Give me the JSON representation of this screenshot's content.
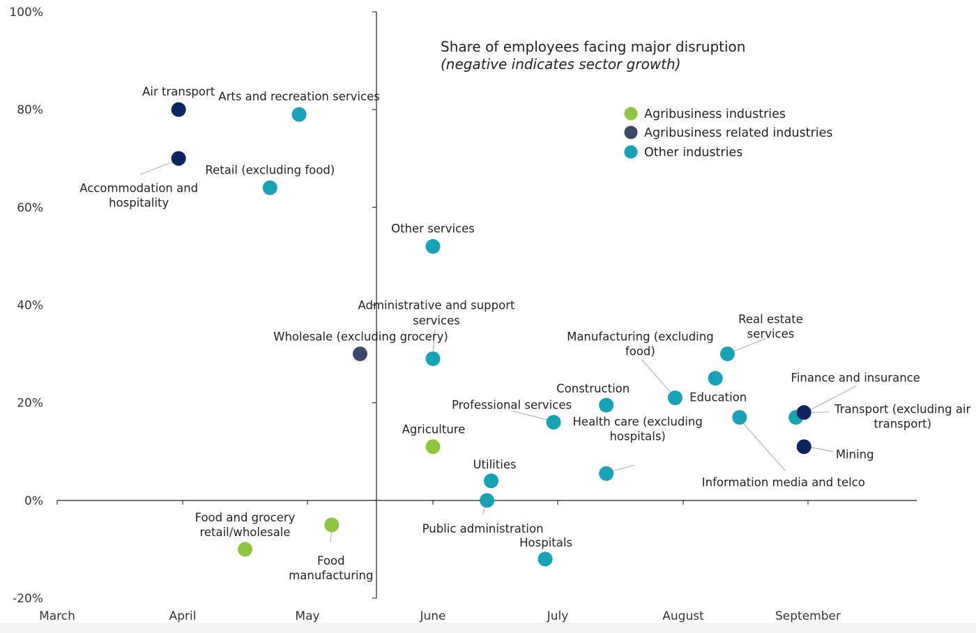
{
  "chart_data": {
    "type": "scatter",
    "title": "Share of employees facing major disruption",
    "subtitle": "(negative indicates sector growth)",
    "xlabel": "",
    "ylabel": "",
    "x_axis": {
      "ticks": [
        "March",
        "April",
        "May",
        "June",
        "July",
        "August",
        "September"
      ]
    },
    "y_axis": {
      "range": [
        -20,
        100
      ],
      "ticks": [
        100,
        80,
        60,
        40,
        20,
        0,
        -20
      ],
      "tick_labels": [
        "100%",
        "80%",
        "60%",
        "40%",
        "20%",
        "0%",
        "-20%"
      ]
    },
    "grid": false,
    "legend_position": "top-right",
    "series": [
      {
        "name": "Agribusiness industries",
        "color": "#8dc63f",
        "points": [
          {
            "label": "Agriculture",
            "x": "2020-06-01",
            "y": 11
          },
          {
            "label": "Food and grocery retail/wholesale",
            "x": "2020-04-16",
            "y": -10
          },
          {
            "label": "Food manufacturing",
            "x": "2020-05-07",
            "y": -5
          }
        ]
      },
      {
        "name": "Agribusiness related industries",
        "color": "#3b4a6b",
        "points": [
          {
            "label": "Wholesale (excluding grocery)",
            "x": "2020-05-14",
            "y": 30
          }
        ]
      },
      {
        "name": "Other industries",
        "color": "#17a2b8",
        "points": [
          {
            "label": "Arts and recreation services",
            "x": "2020-04-29",
            "y": 79
          },
          {
            "label": "Retail (excluding food)",
            "x": "2020-04-22",
            "y": 64
          },
          {
            "label": "Other services",
            "x": "2020-06-01",
            "y": 52
          },
          {
            "label": "Administrative and support services",
            "x": "2020-06-01",
            "y": 29
          },
          {
            "label": "Professional services",
            "x": "2020-06-30",
            "y": 16
          },
          {
            "label": "Construction",
            "x": "2020-07-13",
            "y": 19.5
          },
          {
            "label": "Manufacturing (excluding food)",
            "x": "2020-07-30",
            "y": 21
          },
          {
            "label": "Education",
            "x": "2020-08-09",
            "y": 25
          },
          {
            "label": "Real estate services",
            "x": "2020-08-12",
            "y": 30
          },
          {
            "label": "Information media and telco",
            "x": "2020-08-15",
            "y": 17
          },
          {
            "label": "Transport (excluding air transport)",
            "x": "2020-08-29",
            "y": 17
          },
          {
            "label": "Utilities",
            "x": "2020-06-15",
            "y": 4
          },
          {
            "label": "Public administration",
            "x": "2020-06-14",
            "y": 0
          },
          {
            "label": "Hospitals",
            "x": "2020-06-28",
            "y": -12
          },
          {
            "label": "Health care (excluding hospitals)",
            "x": "2020-07-13",
            "y": 5.5
          }
        ]
      },
      {
        "color": "#0d2463",
        "points": [
          {
            "label": "Air transport",
            "x": "2020-03-31",
            "y": 80
          },
          {
            "label": "Accommodation and hospitality",
            "x": "2020-03-31",
            "y": 70
          },
          {
            "label": "Finance and insurance",
            "x": "2020-08-31",
            "y": 18
          },
          {
            "label": "Mining",
            "x": "2020-08-31",
            "y": 11
          }
        ]
      }
    ]
  }
}
